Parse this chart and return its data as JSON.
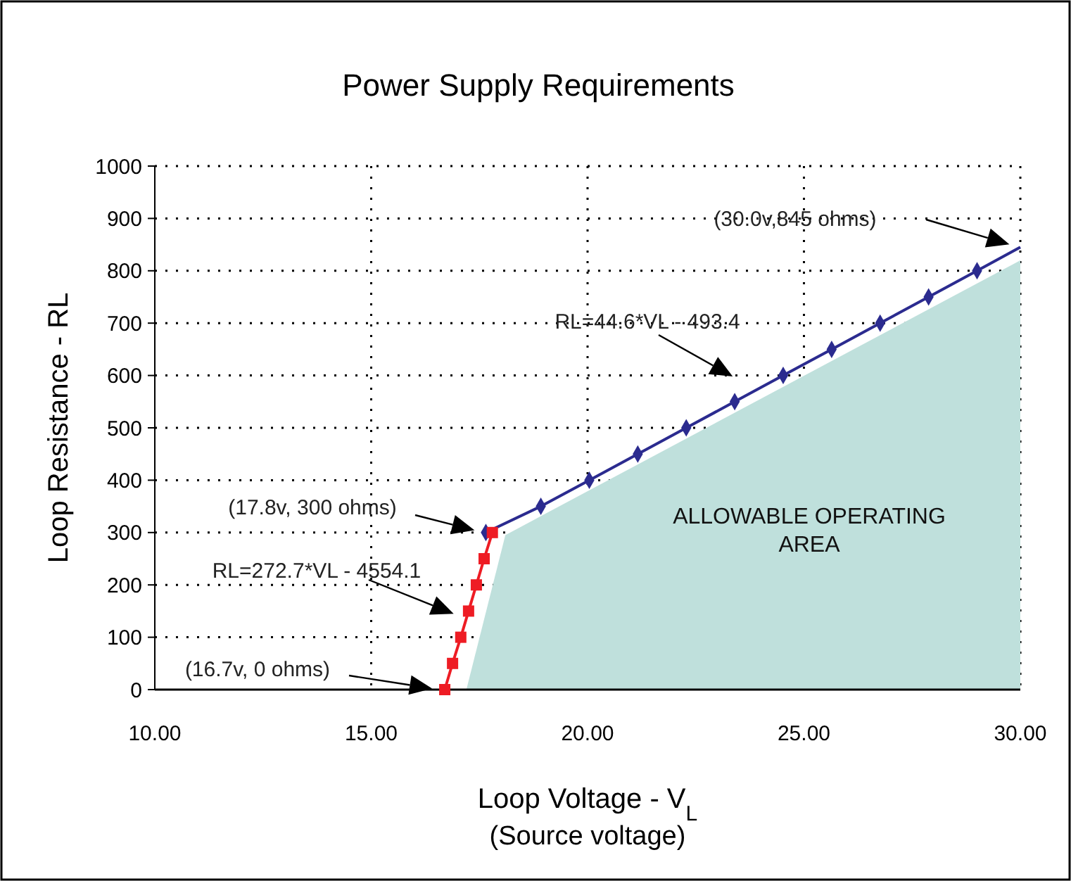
{
  "chart_data": {
    "type": "line",
    "title": "Power Supply Requirements",
    "xlabel": "Loop Voltage - V$_{L}$",
    "ylabel": "Loop Resistance - RL",
    "xlim": [
      10,
      30
    ],
    "ylim": [
      0,
      1000
    ],
    "xticks": [
      {
        "value": 10,
        "label": "10.00"
      },
      {
        "value": 15,
        "label": "15.00"
      },
      {
        "value": 20,
        "label": "20.00"
      },
      {
        "value": 25,
        "label": "25.00"
      },
      {
        "value": 30,
        "label": "30.00"
      }
    ],
    "yticks": [
      0,
      100,
      200,
      300,
      400,
      500,
      600,
      700,
      800,
      900,
      1000
    ],
    "grid": true,
    "series": [
      {
        "type": "area",
        "color": "#bfe0dc",
        "x": [
          17.2,
          18.1,
          30
        ],
        "values": [
          0,
          295,
          820
        ]
      },
      {
        "color": "#2b2b8f",
        "marker": "diamond",
        "x": [
          17.65,
          18.92,
          20.04,
          21.16,
          22.28,
          23.4,
          24.52,
          25.64,
          26.76,
          27.88,
          29.0,
          30.0
        ],
        "values": [
          300,
          350,
          400,
          450,
          500,
          550,
          600,
          650,
          700,
          750,
          800,
          845
        ]
      },
      {
        "color": "#ee1c24",
        "marker": "square",
        "x": [
          16.7,
          16.88,
          17.07,
          17.25,
          17.43,
          17.61,
          17.8
        ],
        "values": [
          0,
          50,
          100,
          150,
          200,
          250,
          300
        ]
      }
    ],
    "annotations": [
      "(30.0v,845 ohms)",
      "RL=44.6*VL - 493.4",
      "(17.8v, 300 ohms)",
      "RL=272.7*VL - 4554.1",
      "(16.7v, 0 ohms)",
      "ALLOWABLE OPERATING AREA",
      "(Source voltage)"
    ]
  }
}
